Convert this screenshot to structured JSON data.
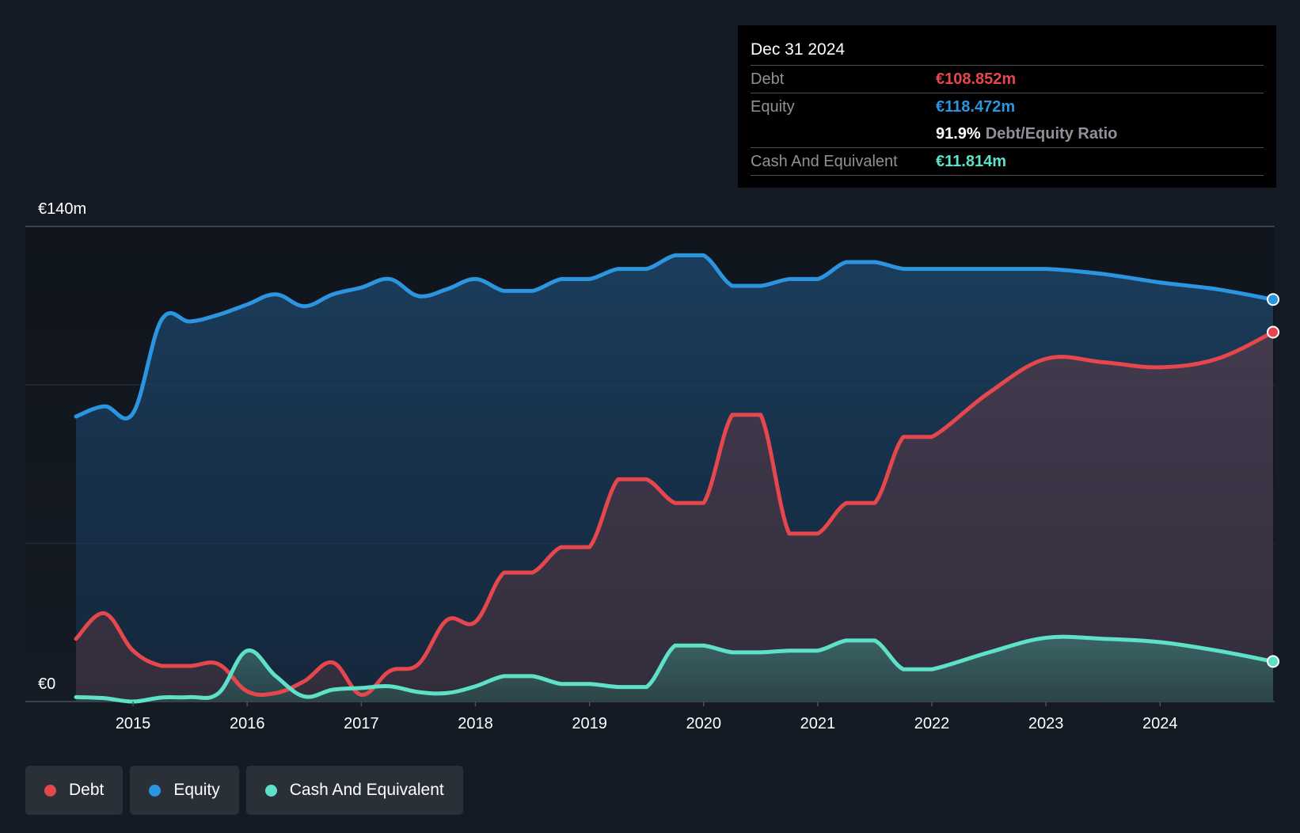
{
  "chart_data": {
    "type": "area",
    "title": "",
    "currency_axis": {
      "top_label": "€140m",
      "bottom_label": "€0"
    },
    "ylim": [
      0,
      140
    ],
    "xlim": [
      2014.5,
      2024.99
    ],
    "x_ticks": [
      "2015",
      "2016",
      "2017",
      "2018",
      "2019",
      "2020",
      "2021",
      "2022",
      "2023",
      "2024"
    ],
    "x_tick_values": [
      2015,
      2016,
      2017,
      2018,
      2019,
      2020,
      2021,
      2022,
      2023,
      2024
    ],
    "series": [
      {
        "name": "Equity",
        "color": "#2b95e0",
        "x": [
          2014.5,
          2014.75,
          2015.0,
          2015.25,
          2015.5,
          2015.75,
          2016.0,
          2016.25,
          2016.5,
          2016.75,
          2017.0,
          2017.25,
          2017.5,
          2017.75,
          2018.0,
          2018.25,
          2018.5,
          2018.75,
          2019.0,
          2019.25,
          2019.5,
          2019.75,
          2020.0,
          2020.25,
          2020.5,
          2020.75,
          2021.0,
          2021.25,
          2021.5,
          2021.75,
          2022.0,
          2022.5,
          2023.0,
          2023.5,
          2024.0,
          2024.5,
          2024.99
        ],
        "values": [
          84,
          87,
          85,
          112.5,
          112,
          114,
          117,
          120,
          116.5,
          120,
          122,
          124.5,
          119.5,
          121.5,
          124.5,
          121,
          121,
          124.5,
          124.5,
          127.5,
          127.5,
          131.5,
          131.5,
          122.5,
          122.5,
          124.5,
          124.5,
          129.5,
          129.5,
          127.5,
          127.5,
          127.5,
          127.5,
          126,
          123.5,
          121.5,
          118.472
        ]
      },
      {
        "name": "Debt",
        "color": "#e5474d",
        "x": [
          2014.5,
          2014.75,
          2015.0,
          2015.25,
          2015.5,
          2015.75,
          2016.0,
          2016.25,
          2016.5,
          2016.75,
          2017.0,
          2017.25,
          2017.5,
          2017.75,
          2018.0,
          2018.25,
          2018.5,
          2018.75,
          2019.0,
          2019.25,
          2019.5,
          2019.75,
          2020.0,
          2020.25,
          2020.5,
          2020.75,
          2021.0,
          2021.25,
          2021.5,
          2021.75,
          2022.0,
          2022.5,
          2023.0,
          2023.5,
          2024.0,
          2024.5,
          2024.99
        ],
        "values": [
          18.5,
          26,
          15,
          10.5,
          10.5,
          11,
          3,
          2.5,
          6,
          11.5,
          2,
          9,
          11,
          24,
          23.5,
          38,
          38,
          45.5,
          45.5,
          65.5,
          65.5,
          58.5,
          58.5,
          84.5,
          84.5,
          49.5,
          49.5,
          58.5,
          58.5,
          78,
          78,
          91,
          101,
          100,
          98.5,
          101,
          108.852
        ]
      },
      {
        "name": "Cash And Equivalent",
        "color": "#5ee1c8",
        "x": [
          2014.5,
          2014.75,
          2015.0,
          2015.25,
          2015.5,
          2015.75,
          2016.0,
          2016.25,
          2016.5,
          2016.75,
          2017.0,
          2017.25,
          2017.5,
          2017.75,
          2018.0,
          2018.25,
          2018.5,
          2018.75,
          2019.0,
          2019.25,
          2019.5,
          2019.75,
          2020.0,
          2020.25,
          2020.5,
          2020.75,
          2021.0,
          2021.25,
          2021.5,
          2021.75,
          2022.0,
          2022.5,
          2023.0,
          2023.5,
          2024.0,
          2024.5,
          2024.99
        ],
        "values": [
          1.3,
          1,
          0,
          1.2,
          1.3,
          2.5,
          15,
          7.5,
          1.5,
          3.5,
          4,
          4.5,
          2.8,
          2.5,
          4.5,
          7.5,
          7.5,
          5.2,
          5.2,
          4.3,
          4.3,
          16.5,
          16.5,
          14.5,
          14.5,
          15,
          15,
          18,
          18,
          9.5,
          9.5,
          14.5,
          18.8,
          18.5,
          17.5,
          15,
          11.814
        ]
      }
    ],
    "tooltip": {
      "date": "Dec 31 2024",
      "debt_label": "Debt",
      "debt_value": "€108.852m",
      "equity_label": "Equity",
      "equity_value": "€118.472m",
      "ratio_value": "91.9%",
      "ratio_label": "Debt/Equity Ratio",
      "cash_label": "Cash And Equivalent",
      "cash_value": "€11.814m"
    },
    "legend": [
      {
        "name": "Debt",
        "color": "#e5474d"
      },
      {
        "name": "Equity",
        "color": "#2b95e0"
      },
      {
        "name": "Cash And Equivalent",
        "color": "#5ee1c8"
      }
    ]
  }
}
